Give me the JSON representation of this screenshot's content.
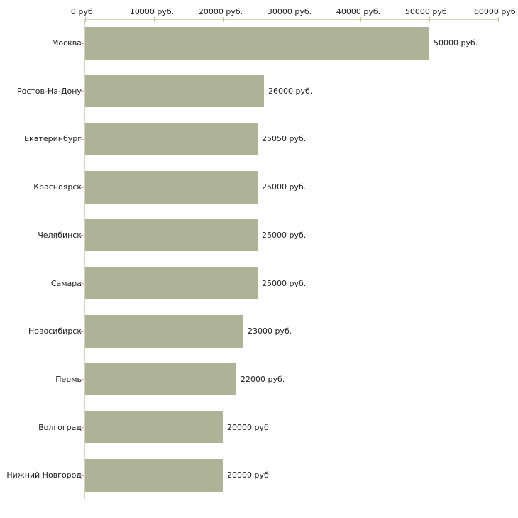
{
  "chart_data": {
    "type": "bar",
    "orientation": "horizontal",
    "title": "",
    "categories": [
      "Москва",
      "Ростов-На-Дону",
      "Екатеринбург",
      "Красноярск",
      "Челябинск",
      "Самара",
      "Новосибирск",
      "Пермь",
      "Волгоград",
      "Нижний Новгород"
    ],
    "values": [
      50000,
      26000,
      25050,
      25000,
      25000,
      25000,
      23000,
      22000,
      20000,
      20000
    ],
    "value_labels": [
      "50000 руб.",
      "26000 руб.",
      "25050 руб.",
      "25000 руб.",
      "25000 руб.",
      "25000 руб.",
      "23000 руб.",
      "22000 руб.",
      "20000 руб.",
      "20000 руб."
    ],
    "x_axis": {
      "position": "top",
      "tick_values": [
        0,
        10000,
        20000,
        30000,
        40000,
        50000,
        60000
      ],
      "tick_labels": [
        "0 руб.",
        "10000 руб.",
        "20000 руб.",
        "30000 руб.",
        "40000 руб.",
        "50000 руб.",
        "60000 руб."
      ],
      "range": [
        0,
        60000
      ],
      "unit": "руб.",
      "grid": false
    },
    "legend": null,
    "colors": {
      "bar": "#aeb297",
      "axis_line": "#d7d3b8",
      "tick_mark": "#c9c5a3",
      "text": "#1c1c1c",
      "background": "#ffffff"
    }
  }
}
